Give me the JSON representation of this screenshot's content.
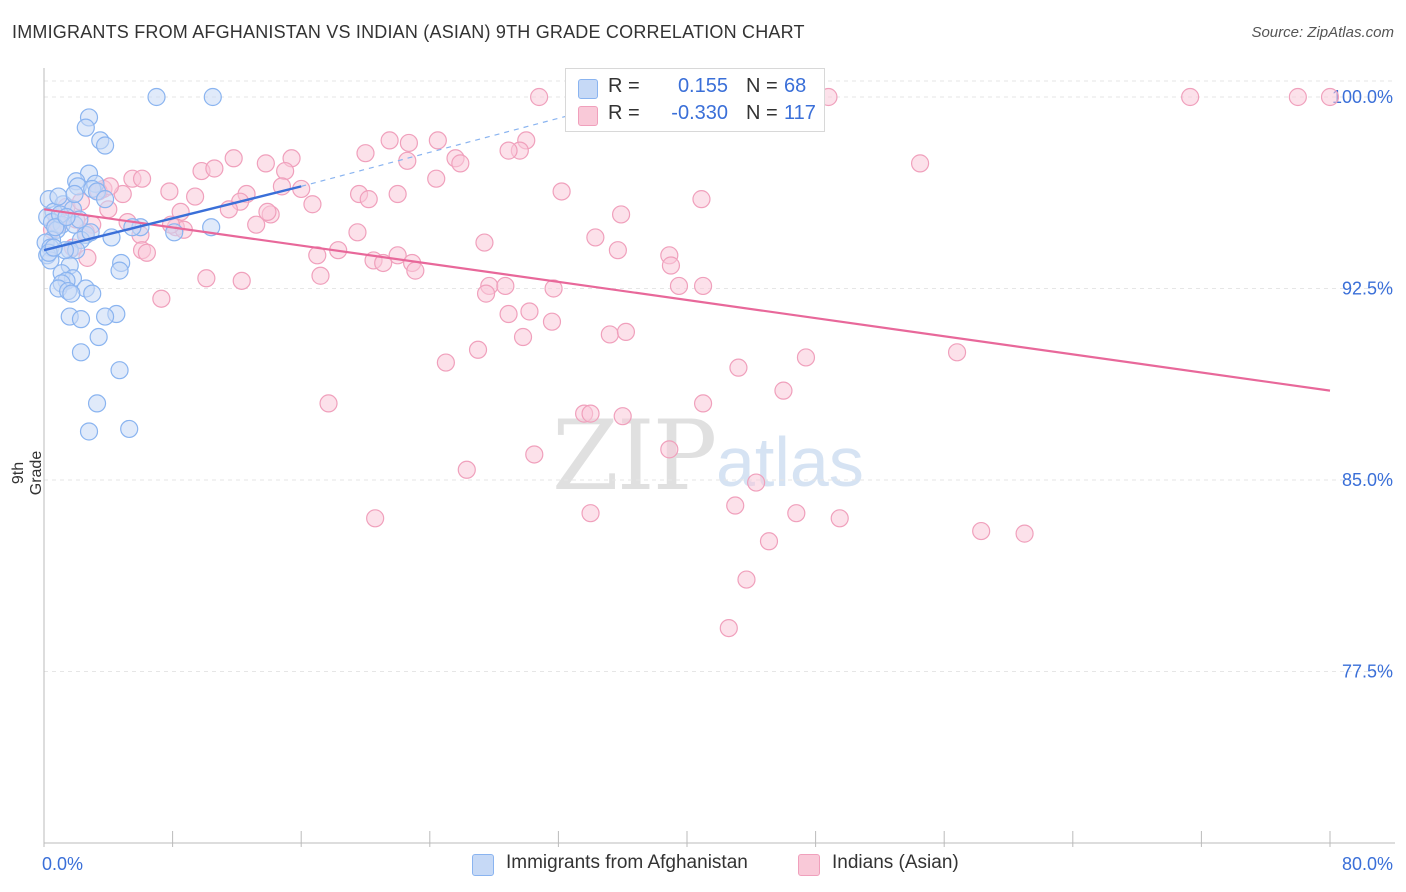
{
  "header": {
    "title": "IMMIGRANTS FROM AFGHANISTAN VS INDIAN (ASIAN) 9TH GRADE CORRELATION CHART",
    "source": "Source: ZipAtlas.com"
  },
  "watermark": {
    "zip": "ZIP",
    "atlas": "atlas"
  },
  "legend_top": {
    "rows": [
      {
        "r_label": "R =",
        "r_value": "0.155",
        "n_label": "N =",
        "n_value": "68",
        "color": "#8ab4f0",
        "fill": "#c6d9f6"
      },
      {
        "r_label": "R =",
        "r_value": "-0.330",
        "n_label": "N =",
        "n_value": "117",
        "color": "#f0a0bc",
        "fill": "#f9c9d8"
      }
    ]
  },
  "legend_bottom": {
    "items": [
      {
        "label": "Immigrants from Afghanistan",
        "color": "#8ab4f0",
        "fill": "#c6d9f6"
      },
      {
        "label": "Indians (Asian)",
        "color": "#f0a0bc",
        "fill": "#f9c9d8"
      }
    ]
  },
  "chart_data": {
    "type": "scatter",
    "title": "IMMIGRANTS FROM AFGHANISTAN VS INDIAN (ASIAN) 9TH GRADE CORRELATION CHART",
    "xlabel": "",
    "ylabel": "9th Grade",
    "xlim": [
      0,
      80
    ],
    "ylim": [
      71,
      101
    ],
    "x_tick_labels": [
      "0.0%",
      "80.0%"
    ],
    "y_ticks": [
      77.5,
      85.0,
      92.5,
      100.0
    ],
    "y_tick_labels": [
      "77.5%",
      "85.0%",
      "92.5%",
      "100.0%"
    ],
    "grid": true,
    "legend_position": "top-center",
    "series": [
      {
        "name": "Immigrants from Afghanistan",
        "color": "#3a6fd8",
        "marker_fill": "#c6d9f6",
        "marker_stroke": "#8ab4f0",
        "points": [
          [
            7.0,
            100.0
          ],
          [
            10.5,
            100.0
          ],
          [
            2.8,
            99.2
          ],
          [
            2.6,
            98.8
          ],
          [
            3.5,
            98.3
          ],
          [
            3.8,
            98.1
          ],
          [
            2.8,
            97.0
          ],
          [
            2.0,
            96.7
          ],
          [
            3.2,
            96.6
          ],
          [
            2.1,
            96.5
          ],
          [
            3.0,
            96.4
          ],
          [
            3.3,
            96.3
          ],
          [
            0.3,
            96.0
          ],
          [
            1.2,
            95.8
          ],
          [
            3.8,
            96.0
          ],
          [
            0.6,
            95.5
          ],
          [
            1.8,
            95.6
          ],
          [
            0.2,
            95.3
          ],
          [
            0.5,
            95.1
          ],
          [
            1.1,
            95.0
          ],
          [
            1.9,
            95.0
          ],
          [
            0.8,
            94.8
          ],
          [
            2.6,
            94.6
          ],
          [
            2.3,
            94.4
          ],
          [
            6.0,
            94.9
          ],
          [
            10.4,
            94.9
          ],
          [
            4.2,
            94.5
          ],
          [
            0.5,
            94.4
          ],
          [
            0.1,
            94.3
          ],
          [
            0.4,
            94.1
          ],
          [
            1.6,
            94.0
          ],
          [
            2.0,
            94.0
          ],
          [
            0.2,
            93.8
          ],
          [
            0.4,
            93.6
          ],
          [
            4.8,
            93.5
          ],
          [
            1.6,
            93.4
          ],
          [
            4.7,
            93.2
          ],
          [
            1.1,
            93.1
          ],
          [
            1.8,
            92.9
          ],
          [
            1.4,
            92.8
          ],
          [
            1.1,
            92.7
          ],
          [
            0.9,
            92.5
          ],
          [
            1.5,
            92.4
          ],
          [
            2.6,
            92.5
          ],
          [
            1.7,
            92.3
          ],
          [
            3.0,
            92.3
          ],
          [
            1.6,
            91.4
          ],
          [
            2.3,
            91.3
          ],
          [
            4.5,
            91.5
          ],
          [
            3.8,
            91.4
          ],
          [
            3.4,
            90.6
          ],
          [
            2.3,
            90.0
          ],
          [
            4.7,
            89.3
          ],
          [
            3.3,
            88.0
          ],
          [
            5.3,
            87.0
          ],
          [
            2.8,
            86.9
          ],
          [
            8.1,
            94.7
          ],
          [
            1.0,
            95.4
          ],
          [
            0.7,
            94.9
          ],
          [
            1.3,
            94.0
          ],
          [
            2.2,
            95.2
          ],
          [
            0.9,
            96.1
          ],
          [
            5.5,
            94.9
          ],
          [
            0.3,
            93.9
          ],
          [
            1.4,
            95.3
          ],
          [
            2.9,
            94.7
          ],
          [
            0.6,
            94.1
          ],
          [
            1.9,
            96.2
          ]
        ],
        "trend": {
          "x": [
            0.0,
            16.0
          ],
          "y": [
            94.0,
            96.5
          ],
          "dashed_extension_to": [
            34.0,
            99.5
          ]
        }
      },
      {
        "name": "Indians (Asian)",
        "color": "#e8689a",
        "marker_fill": "#f9c9d8",
        "marker_stroke": "#f0a0bc",
        "points": [
          [
            30.8,
            100.0
          ],
          [
            48.8,
            100.0
          ],
          [
            71.3,
            100.0
          ],
          [
            78.0,
            100.0
          ],
          [
            80.0,
            100.0
          ],
          [
            21.5,
            98.3
          ],
          [
            22.7,
            98.2
          ],
          [
            24.5,
            98.3
          ],
          [
            30.0,
            98.3
          ],
          [
            29.6,
            97.9
          ],
          [
            28.9,
            97.9
          ],
          [
            20.0,
            97.8
          ],
          [
            11.8,
            97.6
          ],
          [
            15.4,
            97.6
          ],
          [
            25.6,
            97.6
          ],
          [
            22.6,
            97.5
          ],
          [
            13.8,
            97.4
          ],
          [
            25.9,
            97.4
          ],
          [
            9.8,
            97.1
          ],
          [
            10.6,
            97.2
          ],
          [
            15.0,
            97.1
          ],
          [
            54.5,
            97.4
          ],
          [
            24.4,
            96.8
          ],
          [
            5.5,
            96.8
          ],
          [
            6.1,
            96.8
          ],
          [
            14.8,
            96.5
          ],
          [
            7.8,
            96.3
          ],
          [
            19.6,
            96.2
          ],
          [
            20.2,
            96.0
          ],
          [
            16.0,
            96.4
          ],
          [
            22.0,
            96.2
          ],
          [
            32.2,
            96.3
          ],
          [
            40.9,
            96.0
          ],
          [
            12.6,
            96.2
          ],
          [
            9.4,
            96.1
          ],
          [
            4.9,
            96.2
          ],
          [
            3.7,
            96.4
          ],
          [
            12.2,
            95.9
          ],
          [
            11.5,
            95.6
          ],
          [
            16.7,
            95.8
          ],
          [
            8.5,
            95.5
          ],
          [
            4.0,
            95.6
          ],
          [
            14.1,
            95.4
          ],
          [
            13.9,
            95.5
          ],
          [
            35.9,
            95.4
          ],
          [
            2.0,
            95.2
          ],
          [
            3.0,
            95.0
          ],
          [
            5.2,
            95.1
          ],
          [
            8.2,
            94.9
          ],
          [
            6.0,
            94.6
          ],
          [
            8.7,
            94.8
          ],
          [
            13.2,
            95.0
          ],
          [
            19.5,
            94.7
          ],
          [
            34.3,
            94.5
          ],
          [
            27.4,
            94.3
          ],
          [
            22.0,
            93.8
          ],
          [
            6.1,
            94.0
          ],
          [
            18.3,
            94.0
          ],
          [
            17.0,
            93.8
          ],
          [
            35.7,
            94.0
          ],
          [
            38.9,
            93.8
          ],
          [
            20.5,
            93.6
          ],
          [
            21.1,
            93.5
          ],
          [
            22.9,
            93.5
          ],
          [
            23.1,
            93.2
          ],
          [
            39.0,
            93.4
          ],
          [
            17.2,
            93.0
          ],
          [
            10.1,
            92.9
          ],
          [
            12.3,
            92.8
          ],
          [
            27.7,
            92.6
          ],
          [
            28.7,
            92.6
          ],
          [
            39.5,
            92.6
          ],
          [
            41.0,
            92.6
          ],
          [
            31.7,
            92.5
          ],
          [
            7.3,
            92.1
          ],
          [
            27.5,
            92.3
          ],
          [
            30.2,
            91.6
          ],
          [
            28.9,
            91.5
          ],
          [
            31.6,
            91.2
          ],
          [
            35.2,
            90.7
          ],
          [
            36.2,
            90.8
          ],
          [
            29.8,
            90.6
          ],
          [
            27.0,
            90.1
          ],
          [
            56.8,
            90.0
          ],
          [
            47.4,
            89.8
          ],
          [
            25.0,
            89.6
          ],
          [
            43.2,
            89.4
          ],
          [
            17.7,
            88.0
          ],
          [
            46.0,
            88.5
          ],
          [
            36.0,
            87.5
          ],
          [
            33.6,
            87.6
          ],
          [
            34.0,
            87.6
          ],
          [
            41.0,
            88.0
          ],
          [
            38.9,
            86.2
          ],
          [
            30.5,
            86.0
          ],
          [
            26.3,
            85.4
          ],
          [
            44.3,
            84.9
          ],
          [
            43.0,
            84.0
          ],
          [
            34.0,
            83.7
          ],
          [
            46.8,
            83.7
          ],
          [
            49.5,
            83.5
          ],
          [
            20.6,
            83.5
          ],
          [
            58.3,
            83.0
          ],
          [
            61.0,
            82.9
          ],
          [
            45.1,
            82.6
          ],
          [
            43.7,
            81.1
          ],
          [
            42.6,
            79.2
          ],
          [
            0.8,
            95.2
          ],
          [
            1.4,
            95.7
          ],
          [
            2.6,
            94.7
          ],
          [
            0.5,
            94.8
          ],
          [
            3.4,
            96.3
          ],
          [
            1.8,
            94.1
          ],
          [
            2.7,
            93.7
          ],
          [
            4.1,
            96.5
          ],
          [
            6.4,
            93.9
          ],
          [
            0.9,
            95.0
          ],
          [
            7.9,
            95.0
          ],
          [
            2.3,
            95.9
          ]
        ],
        "trend": {
          "x": [
            0.0,
            80.0
          ],
          "y": [
            95.6,
            88.5
          ]
        }
      }
    ]
  }
}
